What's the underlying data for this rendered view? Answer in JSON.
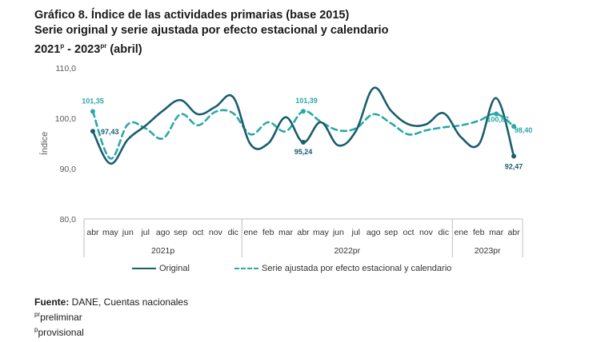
{
  "title": {
    "line1": "Gráfico 8. Índice de las actividades primarias (base 2015)",
    "line2": "Serie original y serie ajustada por efecto estacional y calendario",
    "line3_a": "2021",
    "line3_sup1": "p",
    "line3_b": " - 2023",
    "line3_sup2": "pr",
    "line3_c": " (abril)"
  },
  "chart_data": {
    "type": "line",
    "ylabel": "Índice",
    "ylim": [
      80,
      110
    ],
    "yticks": [
      "80,0",
      "90,0",
      "100,0",
      "110,0"
    ],
    "yticks_values": [
      80,
      90,
      100,
      110
    ],
    "categories": [
      "abr",
      "may",
      "jun",
      "jul",
      "ago",
      "sep",
      "oct",
      "nov",
      "dic",
      "ene",
      "feb",
      "mar",
      "abr",
      "may",
      "jun",
      "jul",
      "ago",
      "sep",
      "oct",
      "nov",
      "dic",
      "ene",
      "feb",
      "mar",
      "abr"
    ],
    "year_groups": [
      {
        "label": "2021p",
        "start": 0,
        "end": 8
      },
      {
        "label": "2022pr",
        "start": 9,
        "end": 20
      },
      {
        "label": "2023pr",
        "start": 21,
        "end": 24
      }
    ],
    "series": [
      {
        "name": "Original",
        "color": "#1a5e6e",
        "style": "solid",
        "values": [
          97.43,
          91.0,
          95.8,
          98.5,
          101.5,
          103.6,
          100.8,
          102.3,
          104.2,
          94.8,
          95.0,
          100.2,
          95.24,
          99.2,
          94.6,
          97.5,
          106.0,
          101.5,
          98.8,
          98.8,
          101.0,
          96.2,
          94.8,
          104.0,
          92.47
        ]
      },
      {
        "name": "Serie ajustada por efecto estacional y calendario",
        "color": "#2aa8a8",
        "style": "dashed",
        "values": [
          101.35,
          92.0,
          98.8,
          98.0,
          96.0,
          100.8,
          98.6,
          101.3,
          101.0,
          96.8,
          99.2,
          97.4,
          101.39,
          99.3,
          97.6,
          98.0,
          100.8,
          99.0,
          96.8,
          97.6,
          98.2,
          98.6,
          99.5,
          100.87,
          98.4
        ]
      }
    ],
    "annotations": [
      {
        "series": 1,
        "index": 0,
        "text": "101,35",
        "color": "#2aa8a8"
      },
      {
        "series": 0,
        "index": 0,
        "text": "97,43",
        "color": "#1a5e6e"
      },
      {
        "series": 1,
        "index": 12,
        "text": "101,39",
        "color": "#2aa8a8"
      },
      {
        "series": 0,
        "index": 12,
        "text": "95,24",
        "color": "#1a5e6e"
      },
      {
        "series": 1,
        "index": 23,
        "text": "100,87",
        "color": "#2aa8a8"
      },
      {
        "series": 1,
        "index": 24,
        "text": "98,40",
        "color": "#2aa8a8"
      },
      {
        "series": 0,
        "index": 24,
        "text": "92,47",
        "color": "#1a5e6e"
      }
    ]
  },
  "legend": {
    "original": "Original",
    "ajustada": "Serie ajustada por efecto estacional y calendario"
  },
  "source": {
    "label": "Fuente:",
    "text": " DANE, Cuentas nacionales",
    "note1_sup": "pr",
    "note1": "preliminar",
    "note2_sup": "p",
    "note2": "provisional"
  }
}
